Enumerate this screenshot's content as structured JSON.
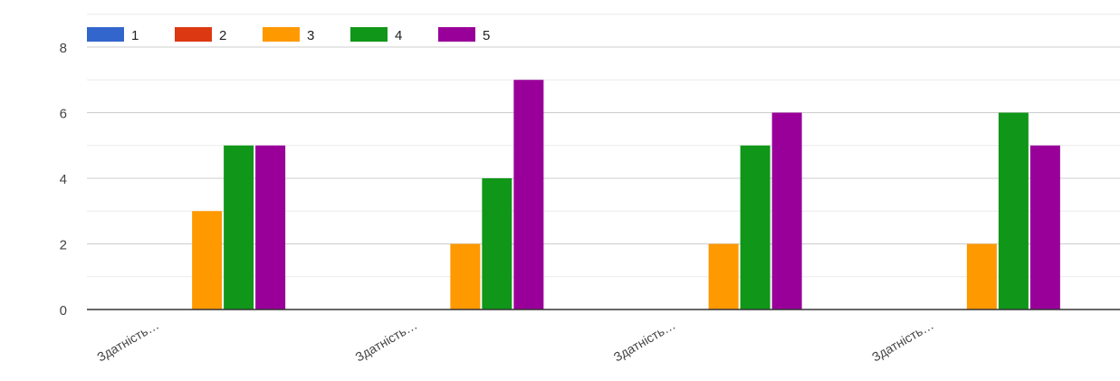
{
  "chart_data": {
    "type": "bar",
    "categories": [
      "Здатність…",
      "Здатність…",
      "Здатність…",
      "Здатність…"
    ],
    "series": [
      {
        "name": "1",
        "color": "#3366cc",
        "values": [
          0,
          0,
          0,
          0
        ]
      },
      {
        "name": "2",
        "color": "#dc3912",
        "values": [
          0,
          0,
          0,
          0
        ]
      },
      {
        "name": "3",
        "color": "#ff9900",
        "values": [
          3,
          2,
          2,
          2
        ]
      },
      {
        "name": "4",
        "color": "#109618",
        "values": [
          5,
          4,
          5,
          6
        ]
      },
      {
        "name": "5",
        "color": "#990099",
        "values": [
          5,
          7,
          6,
          5
        ]
      }
    ],
    "y_ticks": [
      0,
      2,
      4,
      6,
      8
    ],
    "ylim": [
      0,
      8
    ],
    "grid": true,
    "minor_grid": true,
    "legend_position": "top-left",
    "title": "",
    "xlabel": "",
    "ylabel": ""
  }
}
